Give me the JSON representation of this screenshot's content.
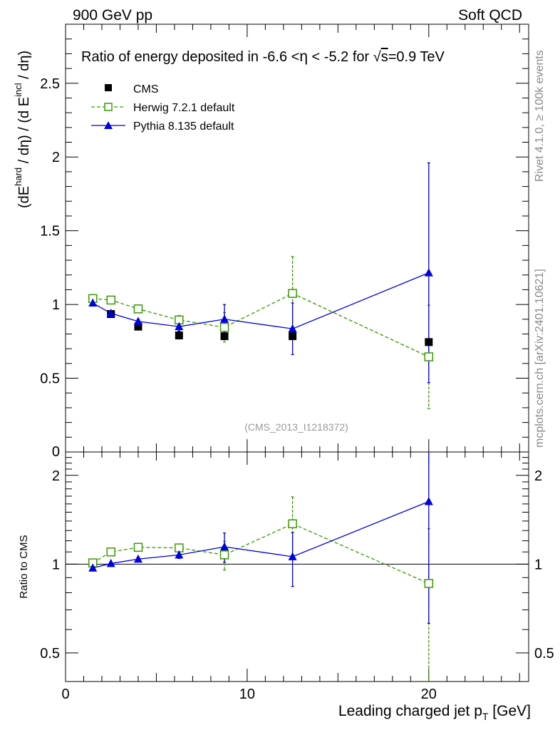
{
  "header": {
    "left": "900 GeV pp",
    "right": "Soft QCD"
  },
  "side_text": {
    "rivet": "Rivet 4.1.0, ≥ 100k events",
    "mcplots": "mcplots.cern.ch [arXiv:2401.10621]"
  },
  "chart_data": [
    {
      "panel": "main",
      "type": "scatter",
      "title": "Ratio of energy deposited in -6.6 <η < -5.2 for √s=0.9 TeV",
      "title_parts": {
        "prefix": "Ratio of energy deposited in -6.6 <",
        "eta": "η",
        "middle": " < -5.2 for ",
        "sqrt": "√",
        "s": "s",
        "suffix": "=0.9 TeV"
      },
      "ylabel": "(dE^hard / dη) / (d E^incl / dη)",
      "ylabel_parts": {
        "open": "(dE",
        "hard": "hard",
        "mid": " / dη) / (d E",
        "incl": "incl",
        "close": " / dη)"
      },
      "watermark": "(CMS_2013_I1218372)",
      "xlim": [
        0,
        25.5
      ],
      "ylim": [
        0,
        2.9
      ],
      "yticks": [
        0.5,
        1,
        1.5,
        2,
        2.5
      ],
      "ytick_labels": [
        "0.5",
        "1",
        "1.5",
        "2",
        "2.5"
      ],
      "ytick_zero_label": "0",
      "legend": [
        "CMS",
        "Herwig 7.2.1 default",
        "Pythia 8.135 default"
      ],
      "series": [
        {
          "name": "CMS",
          "color": "#000000",
          "marker": "square-filled",
          "x": [
            1.5,
            2.5,
            4.0,
            6.25,
            8.75,
            12.5,
            20.0
          ],
          "y": [
            1.04,
            0.935,
            0.85,
            0.79,
            0.785,
            0.785,
            0.745
          ]
        },
        {
          "name": "Herwig 7.2.1 default",
          "color": "#3a9a00",
          "marker": "square-open",
          "line": "dashed",
          "x": [
            1.5,
            2.5,
            4.0,
            6.25,
            8.75,
            12.5,
            20.0
          ],
          "y": [
            1.04,
            1.03,
            0.97,
            0.895,
            0.845,
            1.075,
            0.645
          ],
          "err": [
            0.01,
            0.01,
            0.015,
            0.03,
            0.1,
            0.25,
            0.35
          ]
        },
        {
          "name": "Pythia 8.135 default",
          "color": "#0000dd",
          "marker": "triangle-filled",
          "line": "solid",
          "x": [
            1.5,
            2.5,
            4.0,
            6.25,
            8.75,
            12.5,
            20.0
          ],
          "y": [
            1.01,
            0.94,
            0.885,
            0.85,
            0.9,
            0.835,
            1.215
          ],
          "err": [
            0.01,
            0.01,
            0.015,
            0.03,
            0.1,
            0.175,
            0.745
          ]
        }
      ]
    },
    {
      "panel": "ratio",
      "type": "scatter",
      "xlabel_parts": {
        "main": "Leading charged jet p",
        "sub": "T",
        "unit": " [GeV]"
      },
      "ylabel": "Ratio to CMS",
      "xlim": [
        0,
        25.5
      ],
      "ylim": [
        0.4,
        2.4
      ],
      "yscale": "log",
      "yticks": [
        0.5,
        1,
        2
      ],
      "ytick_labels": [
        "0.5",
        "1",
        "2"
      ],
      "xticks": [
        0,
        10,
        20
      ],
      "xtick_labels": [
        "0",
        "10",
        "20"
      ],
      "reference_line": 1,
      "series": [
        {
          "name": "Herwig 7.2.1 default",
          "color": "#3a9a00",
          "x": [
            1.5,
            2.5,
            4.0,
            6.25,
            8.75,
            12.5,
            20.0
          ],
          "y": [
            1.01,
            1.1,
            1.14,
            1.135,
            1.075,
            1.37,
            0.86
          ],
          "err_low": [
            0.01,
            0.01,
            0.015,
            0.03,
            0.12,
            0.3,
            0.46
          ],
          "err_high": [
            0.01,
            0.01,
            0.015,
            0.03,
            0.12,
            0.32,
            0.46
          ]
        },
        {
          "name": "Pythia 8.135 default",
          "color": "#0000dd",
          "x": [
            1.5,
            2.5,
            4.0,
            6.25,
            8.75,
            12.5,
            20.0
          ],
          "y": [
            0.97,
            1.005,
            1.04,
            1.075,
            1.145,
            1.06,
            1.63
          ],
          "err_low": [
            0.01,
            0.01,
            0.015,
            0.03,
            0.13,
            0.22,
            1.0
          ],
          "err_high": [
            0.01,
            0.01,
            0.015,
            0.03,
            0.13,
            0.22,
            1.0
          ]
        }
      ]
    }
  ]
}
